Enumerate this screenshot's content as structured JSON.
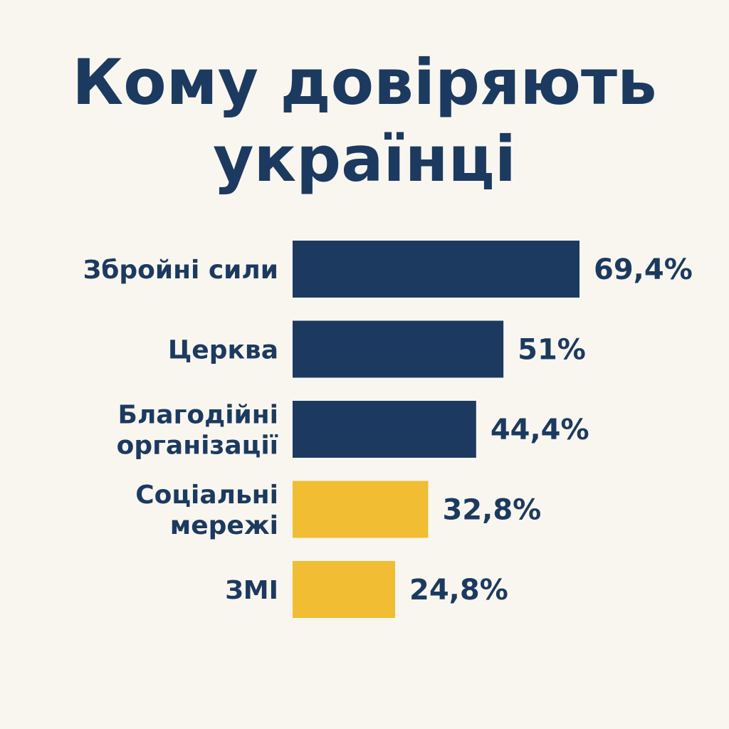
{
  "title_lines": [
    "Кому довіряють",
    "українці"
  ],
  "colors": {
    "background": "#f9f6f0",
    "navy": "#1c3a5f",
    "yellow": "#f1bd33"
  },
  "chart_data": {
    "type": "bar",
    "orientation": "horizontal",
    "title": "Кому довіряють українці",
    "categories": [
      [
        "Збройні сили"
      ],
      [
        "Церква"
      ],
      [
        "Благодійні",
        "організації"
      ],
      [
        "Соціальні",
        "мережі"
      ],
      [
        "ЗМІ"
      ]
    ],
    "values": [
      69.4,
      51,
      44.4,
      32.8,
      24.8
    ],
    "value_labels": [
      "69,4%",
      "51%",
      "44,4%",
      "32,8%",
      "24,8%"
    ],
    "bar_colors": [
      "#1c3a5f",
      "#1c3a5f",
      "#1c3a5f",
      "#f1bd33",
      "#f1bd33"
    ],
    "xlim": [
      0,
      69.4
    ],
    "grid": false,
    "legend": "none"
  }
}
